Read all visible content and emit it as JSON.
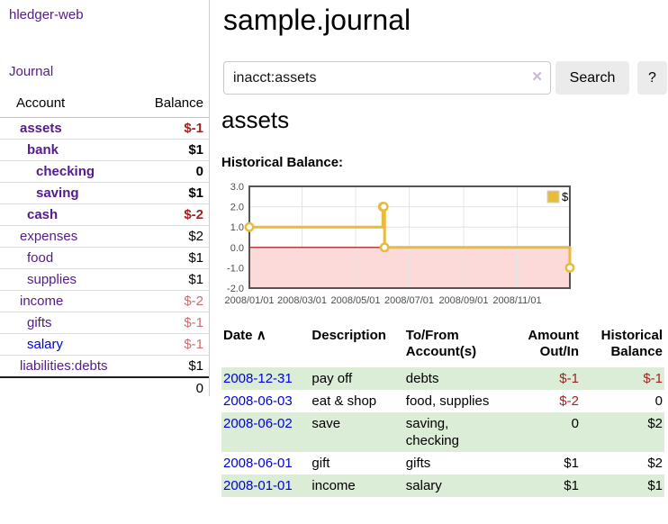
{
  "app": {
    "brand": "hledger-web"
  },
  "sidebar": {
    "journal_link": "Journal",
    "accounts_header": {
      "account": "Account",
      "balance": "Balance"
    },
    "accounts": [
      {
        "name": "assets",
        "level": 1,
        "bold": true,
        "balance": "$-1",
        "neg": "strong"
      },
      {
        "name": "bank",
        "level": 2,
        "bold": true,
        "balance": "$1",
        "neg": "none"
      },
      {
        "name": "checking",
        "level": 3,
        "bold": true,
        "balance": "0",
        "neg": "none"
      },
      {
        "name": "saving",
        "level": 3,
        "bold": true,
        "balance": "$1",
        "neg": "none"
      },
      {
        "name": "cash",
        "level": 2,
        "bold": true,
        "balance": "$-2",
        "neg": "strong"
      },
      {
        "name": "expenses",
        "level": 1,
        "bold": false,
        "balance": "$2",
        "neg": "none"
      },
      {
        "name": "food",
        "level": 2,
        "bold": false,
        "balance": "$1",
        "neg": "none"
      },
      {
        "name": "supplies",
        "level": 2,
        "bold": false,
        "balance": "$1",
        "neg": "none"
      },
      {
        "name": "income",
        "level": 1,
        "bold": false,
        "balance": "$-2",
        "neg": "faded"
      },
      {
        "name": "gifts",
        "level": 2,
        "bold": false,
        "balance": "$-1",
        "neg": "faded"
      },
      {
        "name": "salary",
        "level": 2,
        "bold": false,
        "balance": "$-1",
        "neg": "faded",
        "link_color": "blue"
      },
      {
        "name": "liabilities:debts",
        "level": 1,
        "bold": false,
        "balance": "$1",
        "neg": "none"
      }
    ],
    "total": "0"
  },
  "header": {
    "title": "sample.journal"
  },
  "search": {
    "value": "inacct:assets",
    "clear_icon": "✕",
    "button": "Search",
    "help_button": "?"
  },
  "account_page": {
    "heading": "assets",
    "chart_label": "Historical Balance:"
  },
  "chart_data": {
    "type": "line",
    "title": "Historical Balance:",
    "x_min": "2008-01-01",
    "x_max": "2008-12-31",
    "y_min": -2.0,
    "y_max": 3.0,
    "y_ticks": [
      3.0,
      2.0,
      1.0,
      0.0,
      -1.0,
      -2.0
    ],
    "x_ticks": [
      {
        "label": "2008/01/01",
        "date": "2008-01-01"
      },
      {
        "label": "2008/03/01",
        "date": "2008-03-01"
      },
      {
        "label": "2008/05/01",
        "date": "2008-05-01"
      },
      {
        "label": "2008/07/01",
        "date": "2008-07-01"
      },
      {
        "label": "2008/09/01",
        "date": "2008-09-01"
      },
      {
        "label": "2008/11/01",
        "date": "2008-11-01"
      }
    ],
    "series": [
      {
        "name": "$",
        "color": "#e8bb3a",
        "points": [
          [
            "2008-01-01",
            1
          ],
          [
            "2008-06-01",
            2
          ],
          [
            "2008-06-02",
            2
          ],
          [
            "2008-06-03",
            0
          ],
          [
            "2008-12-31",
            -1
          ]
        ]
      }
    ],
    "legend_position": "top-right",
    "grid": true,
    "negative_fill": "#fcdada",
    "zero_line_color": "#a00000",
    "border_color": "#545454",
    "grid_color": "#e4e4e4"
  },
  "register": {
    "headers": {
      "date": "Date",
      "sort_icon": "∧",
      "description": "Description",
      "tofrom1": "To/From",
      "tofrom2": "Account(s)",
      "amount1": "Amount",
      "amount2": "Out/In",
      "hist1": "Historical",
      "hist2": "Balance"
    },
    "rows": [
      {
        "date": "2008-12-31",
        "description": "pay off",
        "accounts": "debts",
        "amount": "$-1",
        "amount_neg": true,
        "balance": "$-1",
        "balance_neg": true
      },
      {
        "date": "2008-06-03",
        "description": "eat & shop",
        "accounts": "food, supplies",
        "amount": "$-2",
        "amount_neg": true,
        "balance": "0",
        "balance_neg": false
      },
      {
        "date": "2008-06-02",
        "description": "save",
        "accounts": "saving, checking",
        "amount": "0",
        "amount_neg": false,
        "balance": "$2",
        "balance_neg": false
      },
      {
        "date": "2008-06-01",
        "description": "gift",
        "accounts": "gifts",
        "amount": "$1",
        "amount_neg": false,
        "balance": "$2",
        "balance_neg": false
      },
      {
        "date": "2008-01-01",
        "description": "income",
        "accounts": "salary",
        "amount": "$1",
        "amount_neg": false,
        "balance": "$1",
        "balance_neg": false
      }
    ]
  }
}
